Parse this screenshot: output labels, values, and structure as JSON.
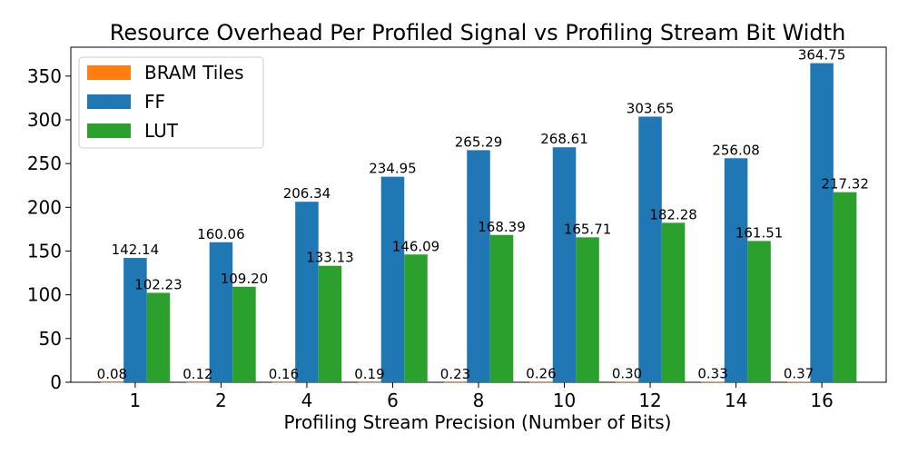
{
  "chart_data": {
    "type": "bar",
    "title": "Resource Overhead Per Profiled Signal vs Profiling Stream Bit Width",
    "xlabel": "Profiling Stream Precision (Number of Bits)",
    "ylabel": "",
    "categories": [
      "1",
      "2",
      "4",
      "6",
      "8",
      "10",
      "12",
      "14",
      "16"
    ],
    "series": [
      {
        "name": "BRAM Tiles",
        "color": "#ff7f0e",
        "values": [
          0.08,
          0.12,
          0.16,
          0.19,
          0.23,
          0.26,
          0.3,
          0.33,
          0.37
        ],
        "labels": [
          "0.08",
          "0.12",
          "0.16",
          "0.19",
          "0.23",
          "0.26",
          "0.30",
          "0.33",
          "0.37"
        ]
      },
      {
        "name": "FF",
        "color": "#1f77b4",
        "values": [
          142.14,
          160.06,
          206.34,
          234.95,
          265.29,
          268.61,
          303.65,
          256.08,
          364.75
        ],
        "labels": [
          "142.14",
          "160.06",
          "206.34",
          "234.95",
          "265.29",
          "268.61",
          "303.65",
          "256.08",
          "364.75"
        ]
      },
      {
        "name": "LUT",
        "color": "#2ca02c",
        "values": [
          102.23,
          109.2,
          133.13,
          146.09,
          168.39,
          165.71,
          182.28,
          161.51,
          217.32
        ],
        "labels": [
          "102.23",
          "109.20",
          "133.13",
          "146.09",
          "168.39",
          "165.71",
          "182.28",
          "161.51",
          "217.32"
        ]
      }
    ],
    "ylim": [
      0,
      383
    ],
    "yticks": [
      0,
      50,
      100,
      150,
      200,
      250,
      300,
      350
    ],
    "grid": false,
    "legend_position": "top-left"
  }
}
